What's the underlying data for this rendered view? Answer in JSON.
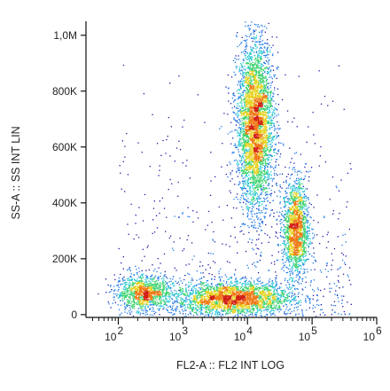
{
  "chart_data": {
    "type": "scatter",
    "title": "",
    "xlabel": "FL2-A :: FL2 INT LOG",
    "ylabel": "SS-A :: SS INT LIN",
    "x_scale": "log",
    "xlim": [
      31.6,
      1000000
    ],
    "ylim": [
      -10000,
      1050000
    ],
    "x_ticks": [
      {
        "value": 100,
        "base": "10",
        "exp": "2"
      },
      {
        "value": 1000,
        "base": "10",
        "exp": "3"
      },
      {
        "value": 10000,
        "base": "10",
        "exp": "4"
      },
      {
        "value": 100000,
        "base": "10",
        "exp": "5"
      },
      {
        "value": 1000000,
        "base": "10",
        "exp": "6"
      }
    ],
    "y_ticks": [
      {
        "value": 0,
        "label": "0"
      },
      {
        "value": 200000,
        "label": "200K"
      },
      {
        "value": 400000,
        "label": "400K"
      },
      {
        "value": 600000,
        "label": "600K"
      },
      {
        "value": 800000,
        "label": "800K"
      },
      {
        "value": 1000000,
        "label": "1,0M"
      }
    ],
    "grid": false,
    "color_mode": "density",
    "density_colors": [
      "#1a1aa8",
      "#1e78e6",
      "#24c6d2",
      "#3cd26e",
      "#e6d21e",
      "#f07814",
      "#d21e14"
    ],
    "populations": [
      {
        "x_center": 250,
        "y_center": 80000,
        "x_spread_decades": 0.22,
        "y_spread": 30000,
        "events": 1100
      },
      {
        "x_center": 6000,
        "y_center": 60000,
        "x_spread_decades": 0.45,
        "y_spread": 30000,
        "events": 2600
      },
      {
        "x_center": 13000,
        "y_center": 680000,
        "x_spread_decades": 0.14,
        "y_spread": 150000,
        "events": 3800
      },
      {
        "x_center": 55000,
        "y_center": 310000,
        "x_spread_decades": 0.1,
        "y_spread": 85000,
        "events": 1600
      }
    ]
  }
}
